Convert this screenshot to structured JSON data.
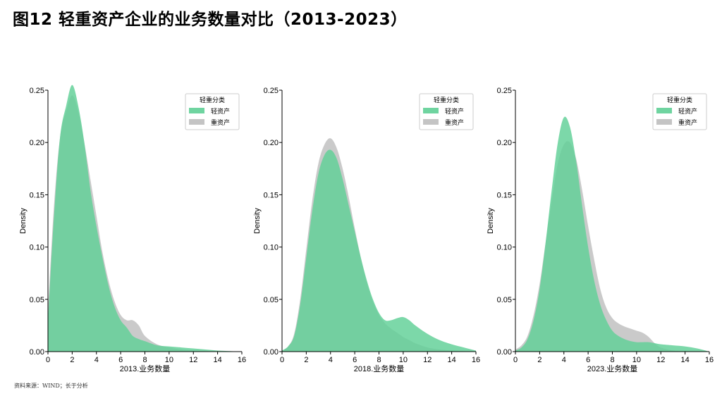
{
  "title": "图12 轻重资产企业的业务数量对比（2013-2023）",
  "source": "资料来源：WIND；长于分析",
  "colors": {
    "light_asset": "#5fcf96",
    "heavy_asset": "#c4c4c4",
    "overlap": "#66bf8f"
  },
  "chart_data": [
    {
      "type": "area",
      "xlabel": "2013.业务数量",
      "ylabel": "Density",
      "xlim": [
        0,
        16
      ],
      "ylim": [
        0,
        0.25
      ],
      "xticks": [
        "0",
        "2",
        "4",
        "6",
        "8",
        "10",
        "12",
        "14",
        "16"
      ],
      "yticks": [
        "0.00",
        "0.05",
        "0.10",
        "0.15",
        "0.20",
        "0.25"
      ],
      "legend_title": "轻重分类",
      "legend_position": "top-right",
      "grid": false,
      "series": [
        {
          "name": "轻资产",
          "x": [
            0,
            0.5,
            1,
            1.5,
            2,
            2.5,
            3,
            3.5,
            4,
            4.5,
            5,
            5.5,
            6,
            6.5,
            7,
            7.5,
            8,
            9,
            10,
            11,
            12,
            13,
            14,
            15,
            16
          ],
          "values": [
            0.03,
            0.13,
            0.205,
            0.235,
            0.255,
            0.235,
            0.2,
            0.155,
            0.12,
            0.09,
            0.063,
            0.043,
            0.03,
            0.023,
            0.015,
            0.012,
            0.01,
            0.006,
            0.005,
            0.004,
            0.003,
            0.002,
            0.001,
            0.0005,
            0
          ]
        },
        {
          "name": "重资产",
          "x": [
            0,
            0.5,
            1,
            1.5,
            2,
            2.5,
            3,
            3.5,
            4,
            4.5,
            5,
            5.5,
            6,
            6.5,
            7,
            7.5,
            8,
            9,
            10,
            11,
            12,
            13,
            14,
            15,
            16
          ],
          "values": [
            0.04,
            0.14,
            0.205,
            0.23,
            0.245,
            0.23,
            0.2,
            0.165,
            0.13,
            0.095,
            0.068,
            0.048,
            0.035,
            0.03,
            0.03,
            0.025,
            0.015,
            0.007,
            0.004,
            0.002,
            0.001,
            0.0005,
            0.0002,
            0,
            0
          ]
        }
      ]
    },
    {
      "type": "area",
      "xlabel": "2018.业务数量",
      "ylabel": "Density",
      "xlim": [
        0,
        16
      ],
      "ylim": [
        0,
        0.25
      ],
      "xticks": [
        "0",
        "2",
        "4",
        "6",
        "8",
        "10",
        "12",
        "14",
        "16"
      ],
      "yticks": [
        "0.00",
        "0.05",
        "0.10",
        "0.15",
        "0.20",
        "0.25"
      ],
      "legend_title": "轻重分类",
      "legend_position": "top-right",
      "grid": false,
      "series": [
        {
          "name": "轻资产",
          "x": [
            0,
            0.5,
            1,
            1.5,
            2,
            2.5,
            3,
            3.5,
            4,
            4.5,
            5,
            5.5,
            6,
            6.5,
            7,
            7.5,
            8,
            8.5,
            9,
            9.5,
            10,
            10.5,
            11,
            12,
            13,
            14,
            15,
            16
          ],
          "values": [
            0.001,
            0.005,
            0.015,
            0.045,
            0.09,
            0.135,
            0.17,
            0.188,
            0.193,
            0.185,
            0.165,
            0.14,
            0.115,
            0.09,
            0.068,
            0.05,
            0.037,
            0.03,
            0.03,
            0.032,
            0.033,
            0.03,
            0.025,
            0.017,
            0.011,
            0.007,
            0.004,
            0.001
          ]
        },
        {
          "name": "重资产",
          "x": [
            0,
            0.5,
            1,
            1.5,
            2,
            2.5,
            3,
            3.5,
            4,
            4.5,
            5,
            5.5,
            6,
            6.5,
            7,
            7.5,
            8,
            8.5,
            9,
            9.5,
            10,
            10.5,
            11,
            12,
            13,
            14,
            15,
            16
          ],
          "values": [
            0.001,
            0.005,
            0.017,
            0.05,
            0.098,
            0.145,
            0.18,
            0.198,
            0.204,
            0.195,
            0.175,
            0.148,
            0.118,
            0.09,
            0.066,
            0.048,
            0.035,
            0.027,
            0.022,
            0.018,
            0.014,
            0.011,
            0.008,
            0.004,
            0.002,
            0.001,
            0.0005,
            0
          ]
        }
      ]
    },
    {
      "type": "area",
      "xlabel": "2023.业务数量",
      "ylabel": "Density",
      "xlim": [
        0,
        16
      ],
      "ylim": [
        0,
        0.25
      ],
      "xticks": [
        "0",
        "2",
        "4",
        "6",
        "8",
        "10",
        "12",
        "14",
        "16"
      ],
      "yticks": [
        "0.00",
        "0.05",
        "0.10",
        "0.15",
        "0.20",
        "0.25"
      ],
      "legend_title": "轻重分类",
      "legend_position": "top-right",
      "grid": false,
      "series": [
        {
          "name": "轻资产",
          "x": [
            0,
            0.5,
            1,
            1.5,
            2,
            2.5,
            3,
            3.5,
            4,
            4.5,
            5,
            5.5,
            6,
            6.5,
            7,
            7.5,
            8,
            8.5,
            9,
            9.5,
            10,
            10.5,
            11,
            11.5,
            12,
            13,
            14,
            15,
            16
          ],
          "values": [
            0.001,
            0.004,
            0.012,
            0.03,
            0.06,
            0.105,
            0.155,
            0.2,
            0.224,
            0.215,
            0.183,
            0.14,
            0.1,
            0.068,
            0.045,
            0.03,
            0.02,
            0.015,
            0.012,
            0.01,
            0.009,
            0.009,
            0.009,
            0.008,
            0.007,
            0.006,
            0.005,
            0.003,
            0
          ]
        },
        {
          "name": "重资产",
          "x": [
            0,
            0.5,
            1,
            1.5,
            2,
            2.5,
            3,
            3.5,
            4,
            4.5,
            5,
            5.5,
            6,
            6.5,
            7,
            7.5,
            8,
            8.5,
            9,
            9.5,
            10,
            10.5,
            11,
            11.5,
            12,
            13,
            14,
            15,
            16
          ],
          "values": [
            0.002,
            0.006,
            0.015,
            0.035,
            0.065,
            0.105,
            0.145,
            0.18,
            0.198,
            0.2,
            0.185,
            0.155,
            0.12,
            0.088,
            0.06,
            0.042,
            0.032,
            0.027,
            0.024,
            0.022,
            0.02,
            0.018,
            0.014,
            0.008,
            0.004,
            0.001,
            0.0003,
            0,
            0
          ]
        }
      ]
    }
  ]
}
